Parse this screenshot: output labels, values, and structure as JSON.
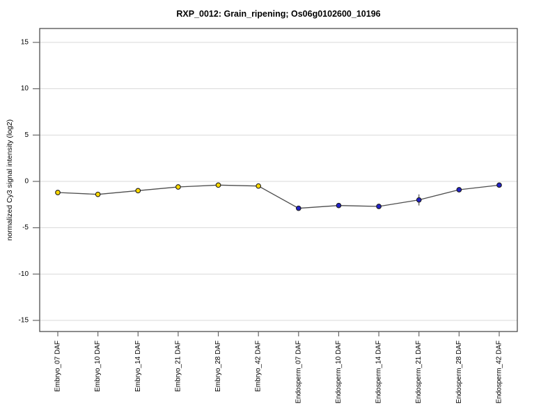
{
  "chart_data": {
    "type": "line",
    "title": "RXP_0012: Grain_ripening; Os06g0102600_10196",
    "xlabel": "",
    "ylabel": "normalized Cy3 signal intensity (log2)",
    "categories": [
      "Embryo_07 DAF",
      "Embryo_10 DAF",
      "Embryo_14 DAF",
      "Embryo_21 DAF",
      "Embryo_28 DAF",
      "Embryo_42 DAF",
      "Endosperm_07 DAF",
      "Endosperm_10 DAF",
      "Endosperm_14 DAF",
      "Endosperm_21 DAF",
      "Endosperm_28 DAF",
      "Endosperm_42 DAF"
    ],
    "values": [
      -1.2,
      -1.4,
      -1.0,
      -0.6,
      -0.4,
      -0.5,
      -2.9,
      -2.6,
      -2.7,
      -2.0,
      -0.9,
      -0.4
    ],
    "errors": [
      0,
      0,
      0,
      0,
      0,
      0,
      0,
      0,
      0,
      0.6,
      0,
      0
    ],
    "groups": [
      "Embryo",
      "Embryo",
      "Embryo",
      "Embryo",
      "Embryo",
      "Embryo",
      "Endosperm",
      "Endosperm",
      "Endosperm",
      "Endosperm",
      "Endosperm",
      "Endosperm"
    ],
    "group_colors": {
      "Embryo": "#ffd900",
      "Endosperm": "#2222c8"
    },
    "marker_outline": "#1a1a1a",
    "line_color": "#4d4d4d",
    "grid_color": "#d9d9d9",
    "frame_color": "#404040",
    "tick_color": "#666666",
    "text_color": "#000000",
    "background": "#ffffff",
    "yticks": [
      -15,
      -10,
      -5,
      0,
      5,
      10,
      15
    ],
    "ylim": [
      -16.2,
      16.5
    ],
    "grid": true,
    "legend": "none"
  }
}
